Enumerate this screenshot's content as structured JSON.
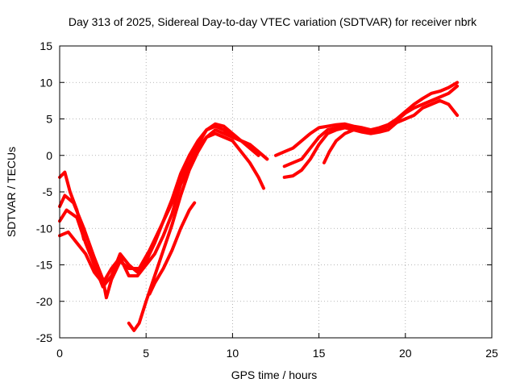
{
  "chart_data": {
    "type": "line",
    "title": "Day 313 of 2025, Sidereal Day-to-day VTEC variation (SDTVAR) for receiver nbrk",
    "xlabel": "GPS time / hours",
    "ylabel": "SDTVAR / TECUs",
    "xlim": [
      0,
      25
    ],
    "ylim": [
      -25,
      15
    ],
    "xticks": [
      "0",
      "5",
      "10",
      "15",
      "20",
      "25"
    ],
    "yticks": [
      "-25",
      "-20",
      "-15",
      "-10",
      "-5",
      "0",
      "5",
      "10",
      "15"
    ],
    "grid": true,
    "legend": "none",
    "color": "#ff0000",
    "series": [
      {
        "x": [
          0.0,
          0.3,
          0.8,
          1.4,
          2.0,
          2.5,
          2.7,
          3.0,
          3.5,
          4.0,
          4.6,
          5.2,
          5.8,
          6.5,
          7.0,
          7.5,
          8.0,
          8.5,
          9.0,
          9.5,
          10.0,
          10.5,
          11.0,
          11.5,
          12.0
        ],
        "y": [
          -7.0,
          -5.5,
          -6.5,
          -10.0,
          -14.0,
          -17.0,
          -19.5,
          -17.0,
          -14.5,
          -15.5,
          -15.5,
          -13.0,
          -10.0,
          -6.5,
          -3.0,
          -1.0,
          1.5,
          3.5,
          4.3,
          4.0,
          3.0,
          2.0,
          1.5,
          0.5,
          -0.5
        ]
      },
      {
        "x": [
          0.0,
          0.4,
          1.0,
          1.5,
          2.0,
          2.5,
          3.0,
          3.5,
          4.0,
          4.5,
          5.0,
          5.5,
          6.0,
          6.5,
          7.0,
          7.5,
          8.0,
          8.5,
          9.0,
          9.5,
          10.0,
          10.5,
          11.0,
          11.5
        ],
        "y": [
          -9.0,
          -7.5,
          -8.5,
          -12.0,
          -15.0,
          -18.0,
          -16.5,
          -13.5,
          -15.0,
          -16.0,
          -14.5,
          -12.0,
          -9.0,
          -6.0,
          -2.5,
          0.0,
          2.0,
          3.5,
          4.0,
          3.5,
          2.5,
          2.0,
          1.0,
          0.0
        ]
      },
      {
        "x": [
          0.0,
          0.5,
          1.0,
          1.5,
          2.0,
          2.5,
          3.0,
          3.5,
          4.0,
          4.5,
          5.0,
          5.5,
          6.0,
          6.5,
          7.0,
          7.5,
          8.0,
          8.5,
          9.0,
          9.5,
          10.0,
          10.5,
          11.0,
          11.5,
          11.8
        ],
        "y": [
          -11.0,
          -10.5,
          -12.0,
          -13.5,
          -16.0,
          -17.5,
          -15.5,
          -14.0,
          -16.5,
          -16.5,
          -15.0,
          -13.5,
          -11.0,
          -8.0,
          -4.0,
          -1.5,
          1.0,
          2.5,
          3.0,
          2.5,
          2.0,
          0.5,
          -1.0,
          -3.0,
          -4.5
        ]
      },
      {
        "x": [
          4.0,
          4.3,
          4.6,
          5.0,
          5.5,
          6.0,
          6.5,
          7.0,
          7.5,
          8.0,
          8.5,
          9.0,
          9.5,
          10.0,
          10.5,
          11.0,
          11.5,
          12.0
        ],
        "y": [
          -23.0,
          -24.0,
          -23.0,
          -20.0,
          -16.5,
          -13.0,
          -9.5,
          -5.5,
          -2.0,
          0.5,
          2.5,
          3.5,
          3.0,
          2.5,
          2.0,
          1.5,
          0.5,
          -0.5
        ]
      },
      {
        "x": [
          5.2,
          5.5,
          6.0,
          6.5,
          7.0,
          7.5,
          7.8
        ],
        "y": [
          -19.0,
          -17.5,
          -15.5,
          -13.0,
          -10.0,
          -7.5,
          -6.5
        ]
      },
      {
        "x": [
          0.0,
          0.3,
          0.6,
          1.0,
          1.4
        ],
        "y": [
          -3.0,
          -2.3,
          -5.0,
          -7.5,
          -11.5
        ]
      },
      {
        "x": [
          12.5,
          13.0,
          13.5,
          14.0,
          14.5,
          15.0,
          15.5,
          16.0,
          16.5,
          17.0,
          17.5,
          18.0,
          18.5,
          19.0,
          19.5,
          20.0,
          20.5,
          21.0,
          21.5,
          22.0,
          22.5,
          23.0
        ],
        "y": [
          0.0,
          0.5,
          1.0,
          2.0,
          3.0,
          3.8,
          4.0,
          4.2,
          4.3,
          4.0,
          3.8,
          3.5,
          3.8,
          4.2,
          5.0,
          6.0,
          7.0,
          7.8,
          8.5,
          8.8,
          9.3,
          10.0
        ]
      },
      {
        "x": [
          13.0,
          13.5,
          14.0,
          14.5,
          15.0,
          15.5,
          16.0,
          16.5,
          17.0,
          17.5,
          18.0,
          18.5,
          19.0,
          19.5,
          20.0,
          20.5,
          21.0,
          21.5,
          22.0,
          22.5,
          23.0
        ],
        "y": [
          -1.5,
          -1.0,
          -0.5,
          1.0,
          2.5,
          3.5,
          3.8,
          4.0,
          3.8,
          3.5,
          3.3,
          3.5,
          4.0,
          4.8,
          5.8,
          6.5,
          7.0,
          7.5,
          8.0,
          8.5,
          9.5
        ]
      },
      {
        "x": [
          13.0,
          13.5,
          14.0,
          14.5,
          15.0,
          15.5,
          16.0,
          16.5,
          17.0,
          17.5,
          18.0,
          18.5,
          19.0,
          19.5,
          20.0,
          20.5,
          21.0,
          21.5,
          22.0,
          22.5,
          23.0
        ],
        "y": [
          -3.0,
          -2.8,
          -2.0,
          -0.5,
          1.5,
          3.0,
          3.5,
          3.8,
          3.5,
          3.2,
          3.0,
          3.2,
          3.5,
          4.5,
          5.0,
          5.5,
          6.5,
          7.0,
          7.5,
          7.0,
          5.5
        ]
      },
      {
        "x": [
          15.3,
          15.6,
          16.0,
          16.5,
          17.0,
          17.5,
          18.0
        ],
        "y": [
          -1.0,
          0.5,
          2.0,
          3.0,
          3.5,
          3.5,
          3.3
        ]
      }
    ]
  }
}
